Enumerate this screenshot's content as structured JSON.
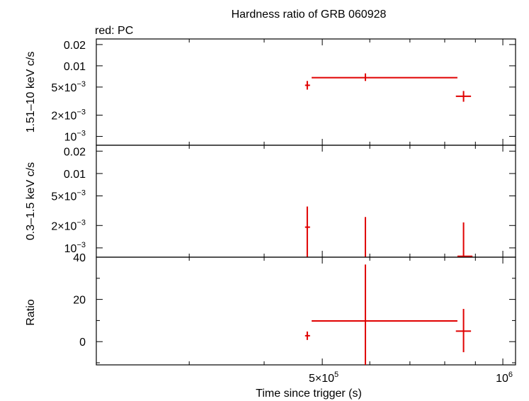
{
  "title": "Hardness ratio of GRB 060928",
  "legend_note": "red: PC",
  "colors": {
    "series": "#e00000",
    "axes": "#000000"
  },
  "chart_data": [
    {
      "type": "scatter",
      "panel": "hard",
      "ylabel": "1.51–10 keV c/s",
      "yscale": "log",
      "ylim": [
        0.00075,
        0.024
      ],
      "y_ticks": [
        {
          "v": 0.02,
          "m": "0.02",
          "e": ""
        },
        {
          "v": 0.01,
          "m": "0.01",
          "e": ""
        },
        {
          "v": 0.005,
          "m": "5×10",
          "e": "−3"
        },
        {
          "v": 0.002,
          "m": "2×10",
          "e": "−3"
        },
        {
          "v": 0.001,
          "m": "10",
          "e": "−3"
        }
      ],
      "points": [
        {
          "x": 472000,
          "xlo": 468000,
          "xhi": 477000,
          "y": 0.0053,
          "ylo": 0.0046,
          "yhi": 0.0061
        },
        {
          "x": 590000,
          "xlo": 480000,
          "xhi": 840000,
          "y": 0.0068,
          "ylo": 0.0061,
          "yhi": 0.0078
        },
        {
          "x": 860000,
          "xlo": 835000,
          "xhi": 885000,
          "y": 0.0037,
          "ylo": 0.0031,
          "yhi": 0.0044
        }
      ]
    },
    {
      "type": "scatter",
      "panel": "soft",
      "ylabel": "0.3–1.5 keV c/s",
      "yscale": "log",
      "ylim": [
        0.00075,
        0.024
      ],
      "y_ticks": [
        {
          "v": 0.02,
          "m": "0.02",
          "e": ""
        },
        {
          "v": 0.01,
          "m": "0.01",
          "e": ""
        },
        {
          "v": 0.005,
          "m": "5×10",
          "e": "−3"
        },
        {
          "v": 0.002,
          "m": "2×10",
          "e": "−3"
        },
        {
          "v": 0.001,
          "m": "10",
          "e": "−3"
        }
      ],
      "points": [
        {
          "x": 472000,
          "xlo": 468000,
          "xhi": 477000,
          "y": 0.0019,
          "ylo": 0.00075,
          "yhi": 0.0036
        },
        {
          "x": 590000,
          "xlo": 590000,
          "xhi": 590000,
          "y": 0.00075,
          "ylo": 0.00075,
          "yhi": 0.0026
        },
        {
          "x": 860000,
          "xlo": 840000,
          "xhi": 890000,
          "y": 0.00077,
          "ylo": 0.00075,
          "yhi": 0.0022
        }
      ]
    },
    {
      "type": "scatter",
      "panel": "ratio",
      "ylabel": "Ratio",
      "yscale": "linear",
      "ylim": [
        -11,
        40
      ],
      "y_ticks": [
        {
          "v": 40,
          "m": "40",
          "e": ""
        },
        {
          "v": 20,
          "m": "20",
          "e": ""
        },
        {
          "v": 0,
          "m": "0",
          "e": ""
        }
      ],
      "points": [
        {
          "x": 472000,
          "xlo": 468000,
          "xhi": 477000,
          "y": 2.8,
          "ylo": 0.8,
          "yhi": 4.8
        },
        {
          "x": 590000,
          "xlo": 480000,
          "xhi": 840000,
          "y": 9.8,
          "ylo": -11,
          "yhi": 36.5
        },
        {
          "x": 860000,
          "xlo": 835000,
          "xhi": 885000,
          "y": 5.0,
          "ylo": -5.0,
          "yhi": 15.5
        }
      ]
    }
  ],
  "x_axis": {
    "label": "Time since trigger (s)",
    "scale": "log",
    "xlim": [
      210000,
      1050000
    ],
    "tick_labels": [
      {
        "v": 500000,
        "m": "5×10",
        "e": "5"
      },
      {
        "v": 1000000,
        "m": "10",
        "e": "6"
      }
    ]
  }
}
